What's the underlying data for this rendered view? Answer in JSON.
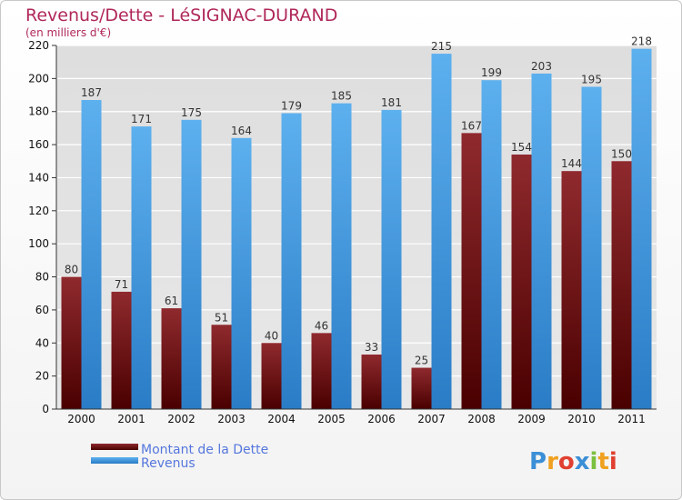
{
  "chart_data": {
    "type": "bar",
    "title": "Revenus/Dette - LéSIGNAC-DURAND",
    "subtitle": "(en milliers d'€)",
    "categories": [
      "2000",
      "2001",
      "2002",
      "2003",
      "2004",
      "2005",
      "2006",
      "2007",
      "2008",
      "2009",
      "2010",
      "2011"
    ],
    "series": [
      {
        "name": "Montant de la Dette",
        "color": "#7a1a1e",
        "values": [
          80,
          71,
          61,
          51,
          40,
          46,
          33,
          25,
          167,
          154,
          144,
          150
        ]
      },
      {
        "name": "Revenus",
        "color": "#3f9fe6",
        "values": [
          187,
          171,
          175,
          164,
          179,
          185,
          181,
          215,
          199,
          203,
          195,
          218
        ]
      }
    ],
    "ylim": [
      0,
      220
    ],
    "yticks": [
      0,
      20,
      40,
      60,
      80,
      100,
      120,
      140,
      160,
      180,
      200,
      220
    ],
    "grid": true,
    "legend": "bottom-left"
  },
  "logo": {
    "letters": [
      "P",
      "r",
      "o",
      "x",
      "i",
      "t",
      "i"
    ],
    "colors": [
      "#3b8fd6",
      "#f0a020",
      "#e04030",
      "#3b8fd6",
      "#7cc040",
      "#f0a020",
      "#e04030"
    ]
  }
}
